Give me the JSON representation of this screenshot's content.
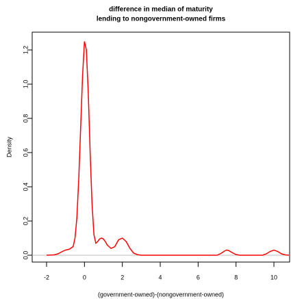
{
  "chart_data": {
    "type": "line",
    "title": [
      "difference in median of maturity",
      "lending to nongovernment-owned firms"
    ],
    "x_label": "(government-owned)-(nongovernment-owned)",
    "y_label": "Density",
    "x": [
      -2.0,
      -1.6,
      -1.4,
      -1.2,
      -1.0,
      -0.8,
      -0.6,
      -0.5,
      -0.4,
      -0.3,
      -0.2,
      -0.1,
      0,
      0.1,
      0.2,
      0.3,
      0.4,
      0.5,
      0.6,
      0.7,
      0.8,
      0.9,
      1.0,
      1.1,
      1.2,
      1.4,
      1.6,
      1.8,
      2.0,
      2.2,
      2.4,
      2.6,
      2.8,
      3.0,
      7.0,
      7.2,
      7.4,
      7.5,
      7.6,
      7.8,
      8.0,
      8.2,
      9.4,
      9.6,
      9.8,
      10.0,
      10.2,
      10.4,
      10.6,
      10.8
    ],
    "series": [
      {
        "name": "density",
        "color": "#ff0000",
        "values": [
          0.0,
          0.002,
          0.008,
          0.02,
          0.03,
          0.035,
          0.05,
          0.1,
          0.22,
          0.45,
          0.75,
          1.05,
          1.25,
          1.2,
          0.95,
          0.6,
          0.3,
          0.12,
          0.07,
          0.08,
          0.095,
          0.1,
          0.095,
          0.08,
          0.06,
          0.04,
          0.05,
          0.09,
          0.1,
          0.08,
          0.04,
          0.012,
          0.003,
          0.0,
          0.0,
          0.01,
          0.025,
          0.03,
          0.028,
          0.015,
          0.004,
          0.0,
          0.0,
          0.008,
          0.022,
          0.03,
          0.022,
          0.008,
          0.002,
          0.0
        ]
      }
    ],
    "xlim": [
      -2.76,
      10.83
    ],
    "ylim": [
      -0.04,
      1.304
    ],
    "xticks": [
      -2,
      0,
      2,
      4,
      6,
      8,
      10
    ],
    "yticks": [
      {
        "value": 0,
        "label": "0.0"
      },
      0.2,
      0.4,
      0.6,
      0.8,
      {
        "value": 1,
        "label": "1.0"
      },
      1.2
    ],
    "zero_line_color": "#bebebe"
  }
}
